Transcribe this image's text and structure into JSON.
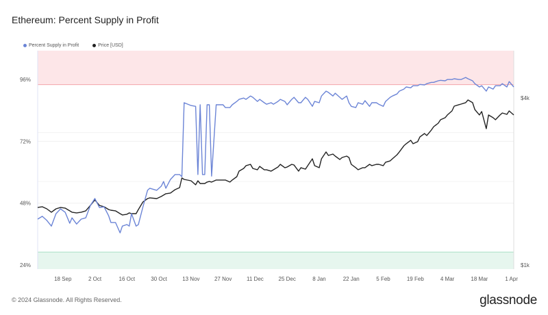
{
  "header": {
    "title": "Ethereum: Percent Supply in Profit"
  },
  "footer": {
    "copyright": "© 2024 Glassnode. All Rights Reserved.",
    "logo": "glassnode"
  },
  "chart_data": {
    "type": "line",
    "title": "Ethereum: Percent Supply in Profit",
    "legend": [
      {
        "name": "Percent Supply in Profit",
        "color": "#6b84d6"
      },
      {
        "name": "Price [USD]",
        "color": "#222222"
      }
    ],
    "legend_placement": "top-left",
    "xlim": [
      "2023-09-07",
      "2024-04-02"
    ],
    "x_ticks": [
      {
        "date": "2023-09-18",
        "label": "18 Sep"
      },
      {
        "date": "2023-10-02",
        "label": "2 Oct"
      },
      {
        "date": "2023-10-16",
        "label": "16 Oct"
      },
      {
        "date": "2023-10-30",
        "label": "30 Oct"
      },
      {
        "date": "2023-11-13",
        "label": "13 Nov"
      },
      {
        "date": "2023-11-27",
        "label": "27 Nov"
      },
      {
        "date": "2023-12-11",
        "label": "11 Dec"
      },
      {
        "date": "2023-12-25",
        "label": "25 Dec"
      },
      {
        "date": "2024-01-08",
        "label": "8 Jan"
      },
      {
        "date": "2024-01-22",
        "label": "22 Jan"
      },
      {
        "date": "2024-02-05",
        "label": "5 Feb"
      },
      {
        "date": "2024-02-19",
        "label": "19 Feb"
      },
      {
        "date": "2024-03-04",
        "label": "4 Mar"
      },
      {
        "date": "2024-03-18",
        "label": "18 Mar"
      },
      {
        "date": "2024-04-01",
        "label": "1 Apr"
      }
    ],
    "y_left": {
      "scale": "linear",
      "lim": [
        22.4,
        107.2
      ],
      "ticks": [
        {
          "v": 96,
          "label": "96%"
        },
        {
          "v": 72,
          "label": "72%"
        },
        {
          "v": 48,
          "label": "48%"
        },
        {
          "v": 24,
          "label": "24%"
        }
      ]
    },
    "y_right": {
      "scale": "log",
      "lim": [
        966,
        5920
      ],
      "ticks": [
        {
          "v": 4000,
          "label": "$4k"
        },
        {
          "v": 1000,
          "label": "$1k"
        }
      ]
    },
    "bands": [
      {
        "from": 94,
        "to": 107.2,
        "color": "#fde6e8",
        "edge": "#f2a3aa"
      },
      {
        "from": 22.4,
        "to": 29,
        "color": "#e6f6ee",
        "edge": "#a8e0c4"
      }
    ],
    "grid": true,
    "columns": [
      "date",
      "percent_supply_in_profit",
      "price_usd"
    ],
    "rows": [
      [
        "2023-09-07",
        41.8,
        1612
      ],
      [
        "2023-09-09",
        42.9,
        1621
      ],
      [
        "2023-09-11",
        41.3,
        1593
      ],
      [
        "2023-09-13",
        39.1,
        1549
      ],
      [
        "2023-09-15",
        43.9,
        1593
      ],
      [
        "2023-09-17",
        45.8,
        1612
      ],
      [
        "2023-09-19",
        44.5,
        1603
      ],
      [
        "2023-09-21",
        40.2,
        1567
      ],
      [
        "2023-09-22",
        42.3,
        1549
      ],
      [
        "2023-09-24",
        39.9,
        1540
      ],
      [
        "2023-09-26",
        41.8,
        1549
      ],
      [
        "2023-09-28",
        42.3,
        1567
      ],
      [
        "2023-09-30",
        47.1,
        1639
      ],
      [
        "2023-10-02",
        49.8,
        1716
      ],
      [
        "2023-10-04",
        46.3,
        1639
      ],
      [
        "2023-10-06",
        46.6,
        1621
      ],
      [
        "2023-10-08",
        43.1,
        1584
      ],
      [
        "2023-10-09",
        40.5,
        1575
      ],
      [
        "2023-10-11",
        40.5,
        1567
      ],
      [
        "2023-10-13",
        36.5,
        1531
      ],
      [
        "2023-10-14",
        39.1,
        1514
      ],
      [
        "2023-10-16",
        39.7,
        1523
      ],
      [
        "2023-10-17",
        39.1,
        1540
      ],
      [
        "2023-10-18",
        43.9,
        1531
      ],
      [
        "2023-10-20",
        39.1,
        1531
      ],
      [
        "2023-10-21",
        39.7,
        1584
      ],
      [
        "2023-10-23",
        46.6,
        1687
      ],
      [
        "2023-10-25",
        53.0,
        1735
      ],
      [
        "2023-10-26",
        53.8,
        1745
      ],
      [
        "2023-10-29",
        53.0,
        1735
      ],
      [
        "2023-10-31",
        54.6,
        1765
      ],
      [
        "2023-11-01",
        56.4,
        1786
      ],
      [
        "2023-11-02",
        53.8,
        1806
      ],
      [
        "2023-11-04",
        57.2,
        1816
      ],
      [
        "2023-11-06",
        59.1,
        1868
      ],
      [
        "2023-11-08",
        59.1,
        1900
      ],
      [
        "2023-11-09",
        58.3,
        2058
      ],
      [
        "2023-11-10",
        87.0,
        2034
      ],
      [
        "2023-11-13",
        85.9,
        2011
      ],
      [
        "2023-11-15",
        85.6,
        1944
      ],
      [
        "2023-11-16",
        59.1,
        2011
      ],
      [
        "2023-11-17",
        86.2,
        1966
      ],
      [
        "2023-11-18",
        59.1,
        1966
      ],
      [
        "2023-11-19",
        59.1,
        1966
      ],
      [
        "2023-11-20",
        86.2,
        1989
      ],
      [
        "2023-11-21",
        86.2,
        2000
      ],
      [
        "2023-11-22",
        58.5,
        1989
      ],
      [
        "2023-11-24",
        86.2,
        2023
      ],
      [
        "2023-11-27",
        86.2,
        2023
      ],
      [
        "2023-11-28",
        85.1,
        2023
      ],
      [
        "2023-11-30",
        85.1,
        1989
      ],
      [
        "2023-12-01",
        86.2,
        2023
      ],
      [
        "2023-12-03",
        87.5,
        2081
      ],
      [
        "2023-12-04",
        88.3,
        2178
      ],
      [
        "2023-12-06",
        88.8,
        2228
      ],
      [
        "2023-12-07",
        88.3,
        2280
      ],
      [
        "2023-12-09",
        89.6,
        2305
      ],
      [
        "2023-12-10",
        89.1,
        2228
      ],
      [
        "2023-12-12",
        87.5,
        2203
      ],
      [
        "2023-12-13",
        88.3,
        2266
      ],
      [
        "2023-12-15",
        87.0,
        2203
      ],
      [
        "2023-12-16",
        86.4,
        2203
      ],
      [
        "2023-12-18",
        87.0,
        2178
      ],
      [
        "2023-12-19",
        86.4,
        2203
      ],
      [
        "2023-12-21",
        87.5,
        2254
      ],
      [
        "2023-12-22",
        88.3,
        2305
      ],
      [
        "2023-12-24",
        87.5,
        2241
      ],
      [
        "2023-12-25",
        86.2,
        2254
      ],
      [
        "2023-12-27",
        88.3,
        2305
      ],
      [
        "2023-12-28",
        89.1,
        2293
      ],
      [
        "2023-12-30",
        87.0,
        2178
      ],
      [
        "2023-12-31",
        87.0,
        2241
      ],
      [
        "2024-01-02",
        89.1,
        2215
      ],
      [
        "2024-01-03",
        88.3,
        2280
      ],
      [
        "2024-01-05",
        85.6,
        2413
      ],
      [
        "2024-01-06",
        87.5,
        2280
      ],
      [
        "2024-01-08",
        87.0,
        2241
      ],
      [
        "2024-01-09",
        89.6,
        2413
      ],
      [
        "2024-01-11",
        91.5,
        2554
      ],
      [
        "2024-01-12",
        91.0,
        2482
      ],
      [
        "2024-01-14",
        89.6,
        2510
      ],
      [
        "2024-01-15",
        90.7,
        2468
      ],
      [
        "2024-01-17",
        89.1,
        2399
      ],
      [
        "2024-01-18",
        88.3,
        2440
      ],
      [
        "2024-01-20",
        89.6,
        2468
      ],
      [
        "2024-01-21",
        87.0,
        2440
      ],
      [
        "2024-01-22",
        85.6,
        2305
      ],
      [
        "2024-01-24",
        85.1,
        2241
      ],
      [
        "2024-01-25",
        87.0,
        2203
      ],
      [
        "2024-01-27",
        86.4,
        2241
      ],
      [
        "2024-01-28",
        87.8,
        2241
      ],
      [
        "2024-01-30",
        85.6,
        2305
      ],
      [
        "2024-01-31",
        87.0,
        2280
      ],
      [
        "2024-02-02",
        87.0,
        2305
      ],
      [
        "2024-02-03",
        86.4,
        2305
      ],
      [
        "2024-02-05",
        85.6,
        2280
      ],
      [
        "2024-02-06",
        87.5,
        2345
      ],
      [
        "2024-02-08",
        89.1,
        2372
      ],
      [
        "2024-02-09",
        89.6,
        2413
      ],
      [
        "2024-02-11",
        90.4,
        2496
      ],
      [
        "2024-02-12",
        91.5,
        2554
      ],
      [
        "2024-02-14",
        92.3,
        2688
      ],
      [
        "2024-02-15",
        93.1,
        2734
      ],
      [
        "2024-02-17",
        92.8,
        2813
      ],
      [
        "2024-02-18",
        93.6,
        2734
      ],
      [
        "2024-02-20",
        93.6,
        2781
      ],
      [
        "2024-02-21",
        94.1,
        2894
      ],
      [
        "2024-02-23",
        93.9,
        2977
      ],
      [
        "2024-02-24",
        94.4,
        2927
      ],
      [
        "2024-02-26",
        94.9,
        3063
      ],
      [
        "2024-02-27",
        94.9,
        3151
      ],
      [
        "2024-02-29",
        95.5,
        3242
      ],
      [
        "2024-03-01",
        95.7,
        3336
      ],
      [
        "2024-03-03",
        95.5,
        3393
      ],
      [
        "2024-03-04",
        96.0,
        3471
      ],
      [
        "2024-03-06",
        96.0,
        3591
      ],
      [
        "2024-03-07",
        96.3,
        3737
      ],
      [
        "2024-03-09",
        96.0,
        3780
      ],
      [
        "2024-03-10",
        96.0,
        3801
      ],
      [
        "2024-03-12",
        96.8,
        3845
      ],
      [
        "2024-03-13",
        96.3,
        3932
      ],
      [
        "2024-03-15",
        95.5,
        3845
      ],
      [
        "2024-03-16",
        94.4,
        3632
      ],
      [
        "2024-03-18",
        93.1,
        3471
      ],
      [
        "2024-03-19",
        93.6,
        3571
      ],
      [
        "2024-03-21",
        91.5,
        3098
      ],
      [
        "2024-03-22",
        93.1,
        3471
      ],
      [
        "2024-03-24",
        92.3,
        3393
      ],
      [
        "2024-03-25",
        93.6,
        3336
      ],
      [
        "2024-03-27",
        93.6,
        3471
      ],
      [
        "2024-03-28",
        94.4,
        3530
      ],
      [
        "2024-03-30",
        93.1,
        3490
      ],
      [
        "2024-03-31",
        95.2,
        3591
      ],
      [
        "2024-04-02",
        93.1,
        3471
      ]
    ]
  }
}
